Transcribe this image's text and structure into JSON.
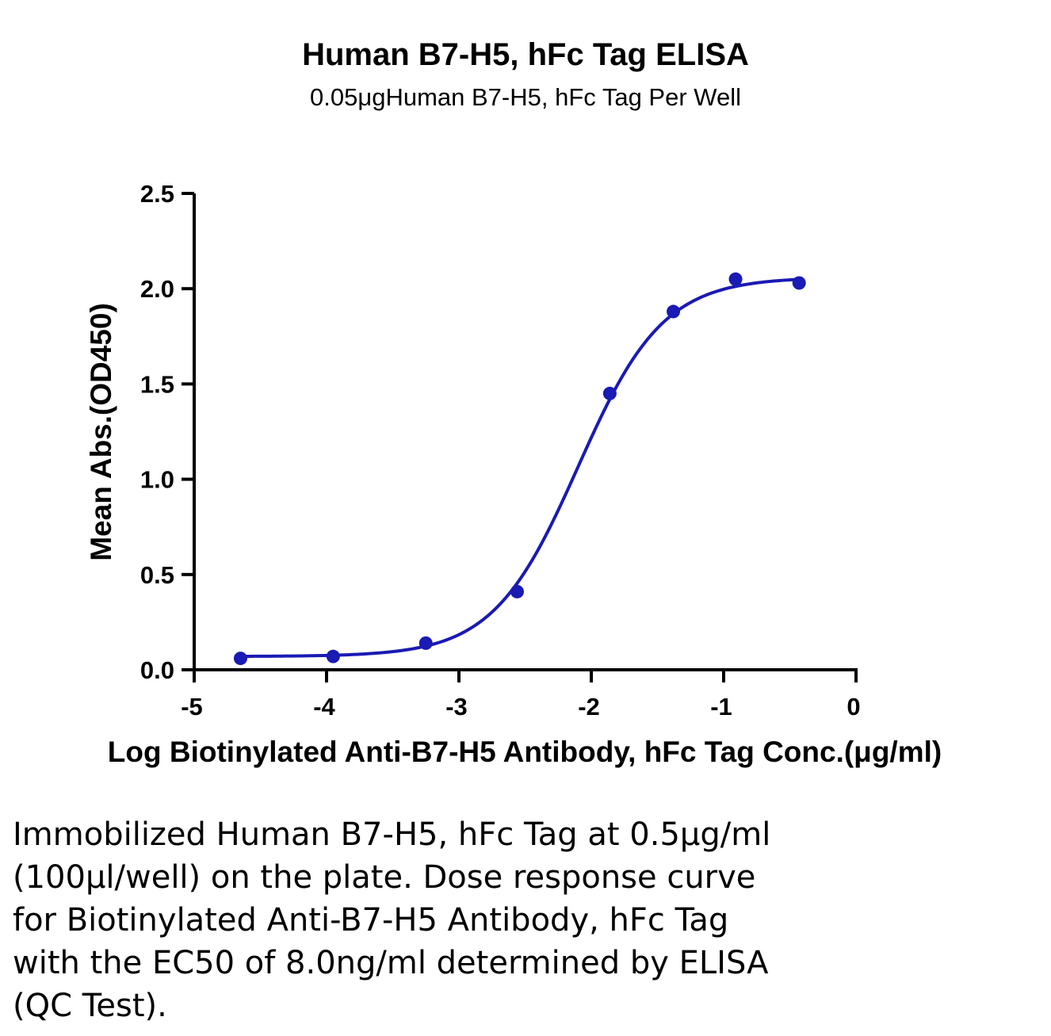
{
  "chart_data": {
    "type": "scatter",
    "title": "Human B7-H5, hFc Tag ELISA",
    "subtitle": "0.05μgHuman B7-H5, hFc Tag Per Well",
    "xlabel": "Log Biotinylated Anti-B7-H5 Antibody, hFc Tag Conc.(μg/ml)",
    "ylabel": "Mean Abs.(OD450)",
    "xlim": [
      -5,
      0
    ],
    "ylim": [
      0,
      2.5
    ],
    "x_ticks": [
      "-5",
      "-4",
      "-3",
      "-2",
      "-1",
      "0"
    ],
    "y_ticks": [
      "0.0",
      "0.5",
      "1.0",
      "1.5",
      "2.0",
      "2.5"
    ],
    "grid": false,
    "series": [
      {
        "color": "#1a1ab4",
        "x": [
          -4.65,
          -3.95,
          -3.25,
          -2.56,
          -1.86,
          -1.38,
          -0.91,
          -0.43
        ],
        "y": [
          0.06,
          0.07,
          0.14,
          0.41,
          1.45,
          1.88,
          2.05,
          2.03
        ]
      }
    ],
    "fit": {
      "model": "4PL",
      "bottom": 0.07,
      "top": 2.06,
      "log_ec50": -2.1,
      "hill": 1.35
    }
  },
  "caption": {
    "lines": [
      "Immobilized Human B7-H5, hFc Tag at 0.5μg/ml",
      "(100μl/well) on the plate. Dose response curve",
      "for Biotinylated Anti-B7-H5 Antibody, hFc Tag",
      "with the EC50 of 8.0ng/ml determined by ELISA",
      "(QC Test)."
    ]
  }
}
